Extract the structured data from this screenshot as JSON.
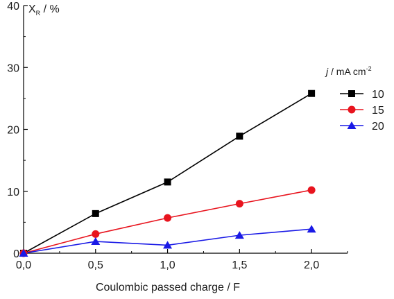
{
  "chart_data": {
    "type": "line",
    "title": "",
    "xlabel": "Coulombic passed charge / F",
    "ylabel": {
      "main": "X",
      "subscript": "R",
      "unit": " / %"
    },
    "xlim": [
      0,
      2.25
    ],
    "ylim": [
      0,
      40
    ],
    "x_ticks": [
      {
        "value": 0,
        "label": "0,0"
      },
      {
        "value": 0.5,
        "label": "0,5"
      },
      {
        "value": 1.0,
        "label": "1,0"
      },
      {
        "value": 1.5,
        "label": "1,5"
      },
      {
        "value": 2.0,
        "label": "2,0"
      }
    ],
    "y_ticks": [
      {
        "value": 0,
        "label": "0"
      },
      {
        "value": 10,
        "label": "10"
      },
      {
        "value": 20,
        "label": "20"
      },
      {
        "value": 30,
        "label": "30"
      },
      {
        "value": 40,
        "label": "40"
      }
    ],
    "grid": false,
    "legend": {
      "placement": "right",
      "title_italic": "j",
      "title_rest": " / mA cm",
      "title_sup": "-2"
    },
    "series": [
      {
        "name": "10",
        "color": "#000000",
        "marker": "square",
        "x": [
          0,
          0.5,
          1.0,
          1.5,
          2.0
        ],
        "y": [
          0,
          6.4,
          11.5,
          18.9,
          25.8
        ]
      },
      {
        "name": "15",
        "color": "#e8141e",
        "marker": "circle",
        "x": [
          0,
          0.5,
          1.0,
          1.5,
          2.0
        ],
        "y": [
          0,
          3.1,
          5.7,
          8.0,
          10.2
        ]
      },
      {
        "name": "20",
        "color": "#1a1ae6",
        "marker": "triangle",
        "x": [
          0,
          0.5,
          1.0,
          1.5,
          2.0
        ],
        "y": [
          0,
          1.9,
          1.3,
          2.9,
          3.9
        ]
      }
    ]
  }
}
